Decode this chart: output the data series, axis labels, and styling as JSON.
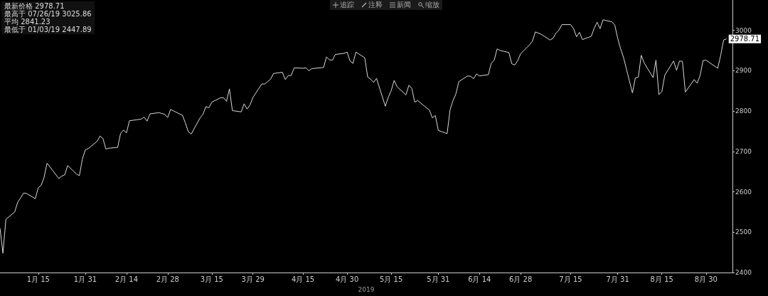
{
  "chart_data": {
    "type": "line",
    "xlabel": "2019",
    "annotations": [
      "最新价格 2978.71",
      "最高于 07/26/19 3025.86",
      "平均 2841.23",
      "最低于 01/03/19 2447.89",
      "追踪",
      "注释",
      "新闻",
      "缩放"
    ],
    "x": [
      "2019-01-02",
      "2019-01-03",
      "2019-01-04",
      "2019-01-07",
      "2019-01-08",
      "2019-01-09",
      "2019-01-10",
      "2019-01-11",
      "2019-01-14",
      "2019-01-15",
      "2019-01-16",
      "2019-01-17",
      "2019-01-18",
      "2019-01-22",
      "2019-01-23",
      "2019-01-24",
      "2019-01-25",
      "2019-01-28",
      "2019-01-29",
      "2019-01-30",
      "2019-01-31",
      "2019-02-01",
      "2019-02-04",
      "2019-02-05",
      "2019-02-06",
      "2019-02-07",
      "2019-02-08",
      "2019-02-11",
      "2019-02-12",
      "2019-02-13",
      "2019-02-14",
      "2019-02-15",
      "2019-02-19",
      "2019-02-20",
      "2019-02-21",
      "2019-02-22",
      "2019-02-25",
      "2019-02-26",
      "2019-02-27",
      "2019-02-28",
      "2019-03-01",
      "2019-03-04",
      "2019-03-05",
      "2019-03-06",
      "2019-03-07",
      "2019-03-08",
      "2019-03-11",
      "2019-03-12",
      "2019-03-13",
      "2019-03-14",
      "2019-03-15",
      "2019-03-18",
      "2019-03-19",
      "2019-03-20",
      "2019-03-21",
      "2019-03-22",
      "2019-03-25",
      "2019-03-26",
      "2019-03-27",
      "2019-03-28",
      "2019-03-29",
      "2019-04-01",
      "2019-04-02",
      "2019-04-03",
      "2019-04-04",
      "2019-04-05",
      "2019-04-08",
      "2019-04-09",
      "2019-04-10",
      "2019-04-11",
      "2019-04-12",
      "2019-04-15",
      "2019-04-16",
      "2019-04-17",
      "2019-04-18",
      "2019-04-22",
      "2019-04-23",
      "2019-04-24",
      "2019-04-25",
      "2019-04-26",
      "2019-04-29",
      "2019-04-30",
      "2019-05-01",
      "2019-05-02",
      "2019-05-03",
      "2019-05-06",
      "2019-05-07",
      "2019-05-08",
      "2019-05-09",
      "2019-05-10",
      "2019-05-13",
      "2019-05-14",
      "2019-05-15",
      "2019-05-16",
      "2019-05-17",
      "2019-05-20",
      "2019-05-21",
      "2019-05-22",
      "2019-05-23",
      "2019-05-24",
      "2019-05-28",
      "2019-05-29",
      "2019-05-30",
      "2019-05-31",
      "2019-06-03",
      "2019-06-04",
      "2019-06-05",
      "2019-06-06",
      "2019-06-07",
      "2019-06-10",
      "2019-06-11",
      "2019-06-12",
      "2019-06-13",
      "2019-06-14",
      "2019-06-17",
      "2019-06-18",
      "2019-06-19",
      "2019-06-20",
      "2019-06-21",
      "2019-06-24",
      "2019-06-25",
      "2019-06-26",
      "2019-06-27",
      "2019-06-28",
      "2019-07-01",
      "2019-07-02",
      "2019-07-03",
      "2019-07-05",
      "2019-07-08",
      "2019-07-09",
      "2019-07-10",
      "2019-07-11",
      "2019-07-12",
      "2019-07-15",
      "2019-07-16",
      "2019-07-17",
      "2019-07-18",
      "2019-07-19",
      "2019-07-22",
      "2019-07-23",
      "2019-07-24",
      "2019-07-25",
      "2019-07-26",
      "2019-07-29",
      "2019-07-30",
      "2019-07-31",
      "2019-08-01",
      "2019-08-02",
      "2019-08-05",
      "2019-08-06",
      "2019-08-07",
      "2019-08-08",
      "2019-08-09",
      "2019-08-12",
      "2019-08-13",
      "2019-08-14",
      "2019-08-15",
      "2019-08-16",
      "2019-08-19",
      "2019-08-20",
      "2019-08-21",
      "2019-08-22",
      "2019-08-23",
      "2019-08-26",
      "2019-08-27",
      "2019-08-28",
      "2019-08-29",
      "2019-08-30",
      "2019-09-03",
      "2019-09-04",
      "2019-09-05",
      "2019-09-06"
    ],
    "series": [
      {
        "color": "#d9d9d9",
        "values": [
          2510,
          2448,
          2532,
          2550,
          2574,
          2585,
          2597,
          2596,
          2583,
          2610,
          2616,
          2636,
          2671,
          2633,
          2639,
          2642,
          2665,
          2644,
          2640,
          2681,
          2704,
          2707,
          2725,
          2738,
          2732,
          2706,
          2708,
          2710,
          2745,
          2753,
          2746,
          2776,
          2780,
          2785,
          2775,
          2793,
          2796,
          2794,
          2792,
          2784,
          2804,
          2793,
          2790,
          2771,
          2749,
          2743,
          2783,
          2792,
          2811,
          2808,
          2822,
          2833,
          2833,
          2824,
          2855,
          2801,
          2798,
          2818,
          2805,
          2815,
          2834,
          2867,
          2867,
          2873,
          2879,
          2893,
          2896,
          2878,
          2888,
          2888,
          2907,
          2906,
          2907,
          2900,
          2905,
          2908,
          2934,
          2927,
          2926,
          2940,
          2943,
          2946,
          2924,
          2918,
          2946,
          2932,
          2884,
          2879,
          2871,
          2881,
          2812,
          2834,
          2851,
          2876,
          2860,
          2840,
          2864,
          2856,
          2822,
          2826,
          2802,
          2783,
          2789,
          2752,
          2744,
          2803,
          2826,
          2843,
          2873,
          2887,
          2886,
          2880,
          2892,
          2887,
          2890,
          2918,
          2926,
          2954,
          2950,
          2945,
          2917,
          2914,
          2925,
          2942,
          2964,
          2973,
          2996,
          2990,
          2976,
          2980,
          2993,
          3000,
          3014,
          3014,
          3004,
          2984,
          2995,
          2977,
          2985,
          3005,
          3020,
          3004,
          3026,
          3021,
          3013,
          2980,
          2954,
          2932,
          2845,
          2882,
          2884,
          2938,
          2919,
          2883,
          2926,
          2841,
          2848,
          2889,
          2924,
          2901,
          2924,
          2923,
          2847,
          2878,
          2869,
          2888,
          2925,
          2926,
          2906,
          2938,
          2976,
          2978.71
        ],
        "value_labels": [
          null,
          null,
          null,
          null,
          null,
          null,
          null,
          null,
          null,
          null,
          null,
          null,
          null,
          null,
          null,
          null,
          null,
          null,
          null,
          null,
          null,
          null,
          null,
          null,
          null,
          null,
          null,
          null,
          null,
          null,
          null,
          null,
          null,
          null,
          null,
          null,
          null,
          null,
          null,
          null,
          null,
          null,
          null,
          null,
          null,
          null,
          null,
          null,
          null,
          null,
          null,
          null,
          null,
          null,
          null,
          null,
          null,
          null,
          null,
          null,
          null,
          null,
          null,
          null,
          null,
          null,
          null,
          null,
          null,
          null,
          null,
          null,
          null,
          null,
          null,
          null,
          null,
          null,
          null,
          null,
          null,
          null,
          null,
          null,
          null,
          null,
          null,
          null,
          null,
          null,
          null,
          null,
          null,
          null,
          null,
          null,
          null,
          null,
          null,
          null,
          null,
          null,
          null,
          null,
          null,
          null,
          null,
          null,
          null,
          null,
          null,
          null,
          null,
          null,
          null,
          null,
          null,
          null,
          null,
          null,
          null,
          null,
          null,
          null,
          null,
          null,
          null,
          null,
          null,
          null,
          null,
          null,
          null,
          null,
          null,
          null,
          null,
          null,
          null,
          null,
          null,
          null,
          null,
          null,
          null,
          null,
          null,
          null,
          null,
          null,
          null,
          null,
          null,
          null,
          null,
          null,
          null,
          null,
          null,
          null,
          null,
          null,
          null,
          null,
          null,
          null,
          null,
          null,
          null,
          null,
          null,
          "2978.71"
        ]
      }
    ],
    "xlim": [
      "2019-01-02",
      "2019-09-08"
    ],
    "xticks": [
      {
        "value": "2019-01-15",
        "label": "1月 15"
      },
      {
        "value": "2019-01-31",
        "label": "1月 31"
      },
      {
        "value": "2019-02-14",
        "label": "2月 14"
      },
      {
        "value": "2019-02-28",
        "label": "2月 28"
      },
      {
        "value": "2019-03-15",
        "label": "3月 15"
      },
      {
        "value": "2019-03-29",
        "label": "3月 29"
      },
      {
        "value": "2019-04-15",
        "label": "4月 15"
      },
      {
        "value": "2019-04-30",
        "label": "4月 30"
      },
      {
        "value": "2019-05-15",
        "label": "5月 15"
      },
      {
        "value": "2019-05-31",
        "label": "5月 31"
      },
      {
        "value": "2019-06-14",
        "label": "6月 14"
      },
      {
        "value": "2019-06-28",
        "label": "6月 28"
      },
      {
        "value": "2019-07-15",
        "label": "7月 15"
      },
      {
        "value": "2019-07-31",
        "label": "7月 31"
      },
      {
        "value": "2019-08-15",
        "label": "8月 15"
      },
      {
        "value": "2019-08-30",
        "label": "8月 30"
      }
    ],
    "ylim": [
      2400,
      3075
    ],
    "yticks": [
      2400,
      2500,
      2600,
      2700,
      2800,
      2900,
      3000
    ],
    "grid": false,
    "marker": "none",
    "line_style": "solid"
  }
}
